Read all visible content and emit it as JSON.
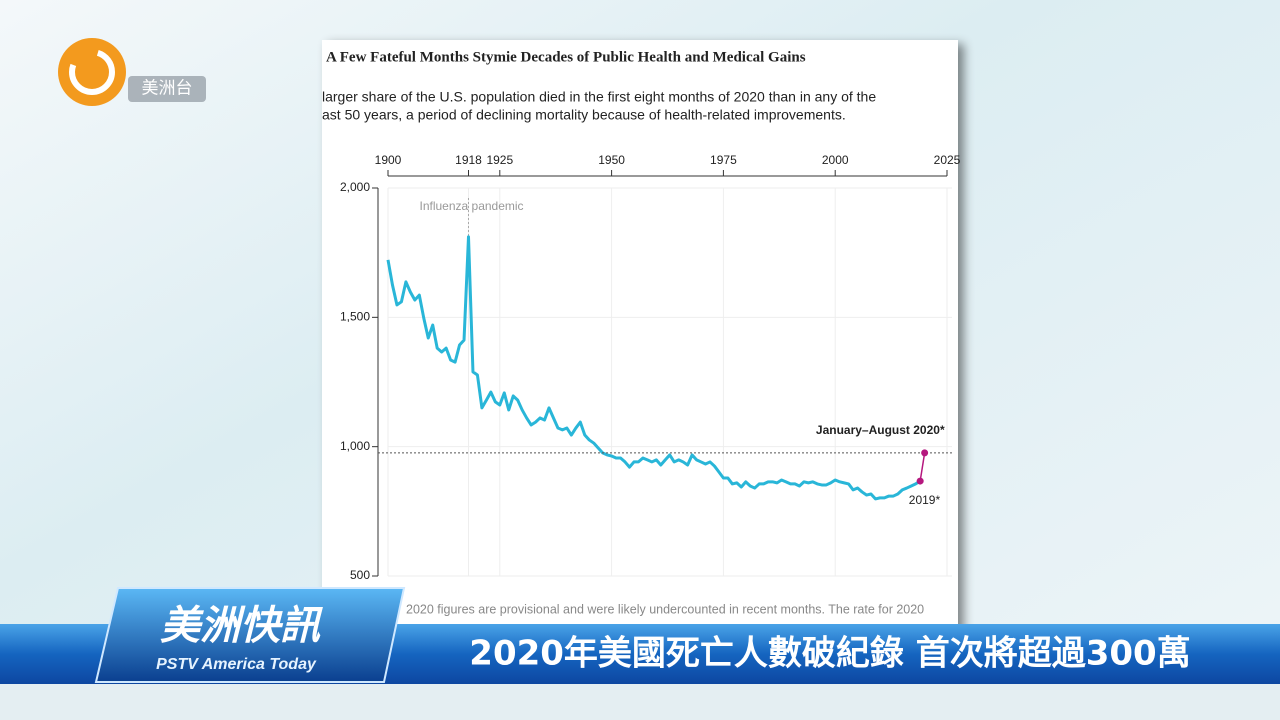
{
  "broadcast": {
    "logo": "美洲台",
    "program_zh": "美洲快訊",
    "program_en": "PSTV America Today",
    "headline": "2020年美國死亡人數破紀錄  首次將超過300萬"
  },
  "chart_data": {
    "type": "line",
    "title": "A Few Fateful Months Stymie Decades of Public Health and Medical Gains",
    "subtitle": [
      "larger share of the U.S. population died in the first eight months of 2020 than in any of the",
      "ast 50 years, a period of declining mortality because of health-related improvements."
    ],
    "footnote": "2020 figures are provisional and were likely undercounted in recent months. The rate for 2020",
    "xlim": [
      1900,
      2025
    ],
    "xticks": [
      1900,
      1918,
      1925,
      1950,
      1975,
      2000,
      2025
    ],
    "ylim": [
      500,
      2000
    ],
    "yticks": [
      {
        "value": 500,
        "label": "500"
      },
      {
        "value": 1000,
        "label": "1,000"
      },
      {
        "value": 1500,
        "label": "1,500"
      },
      {
        "value": 2000,
        "label": "2,000"
      }
    ],
    "grid": true,
    "color": "#29b6d8",
    "x": [
      1900,
      1901,
      1902,
      1903,
      1904,
      1905,
      1906,
      1907,
      1908,
      1909,
      1910,
      1911,
      1912,
      1913,
      1914,
      1915,
      1916,
      1917,
      1918,
      1919,
      1920,
      1921,
      1922,
      1923,
      1924,
      1925,
      1926,
      1927,
      1928,
      1929,
      1930,
      1931,
      1932,
      1933,
      1934,
      1935,
      1936,
      1937,
      1938,
      1939,
      1940,
      1941,
      1942,
      1943,
      1944,
      1945,
      1946,
      1947,
      1948,
      1949,
      1950,
      1951,
      1952,
      1953,
      1954,
      1955,
      1956,
      1957,
      1958,
      1959,
      1960,
      1961,
      1962,
      1963,
      1964,
      1965,
      1966,
      1967,
      1968,
      1969,
      1970,
      1971,
      1972,
      1973,
      1974,
      1975,
      1976,
      1977,
      1978,
      1979,
      1980,
      1981,
      1982,
      1983,
      1984,
      1985,
      1986,
      1987,
      1988,
      1989,
      1990,
      1991,
      1992,
      1993,
      1994,
      1995,
      1996,
      1997,
      1998,
      1999,
      2000,
      2001,
      2002,
      2003,
      2004,
      2005,
      2006,
      2007,
      2008,
      2009,
      2010,
      2011,
      2012,
      2013,
      2014,
      2015,
      2016,
      2017,
      2018,
      2019
    ],
    "values": [
      1722,
      1625,
      1548,
      1560,
      1637,
      1598,
      1567,
      1586,
      1497,
      1420,
      1470,
      1381,
      1366,
      1381,
      1335,
      1327,
      1393,
      1412,
      1811,
      1289,
      1277,
      1150,
      1180,
      1211,
      1173,
      1161,
      1208,
      1142,
      1196,
      1180,
      1142,
      1111,
      1084,
      1095,
      1111,
      1103,
      1150,
      1111,
      1072,
      1065,
      1072,
      1045,
      1072,
      1095,
      1045,
      1026,
      1014,
      995,
      976,
      968,
      964,
      956,
      956,
      941,
      921,
      941,
      941,
      956,
      949,
      941,
      949,
      929,
      949,
      968,
      941,
      949,
      941,
      929,
      968,
      949,
      941,
      933,
      941,
      925,
      902,
      879,
      879,
      856,
      860,
      844,
      864,
      848,
      840,
      856,
      856,
      864,
      864,
      860,
      871,
      864,
      856,
      856,
      848,
      864,
      860,
      864,
      856,
      852,
      852,
      860,
      871,
      864,
      860,
      856,
      833,
      840,
      825,
      813,
      817,
      798,
      802,
      802,
      809,
      809,
      817,
      833,
      840,
      848,
      856,
      867
    ],
    "highlight": {
      "x": [
        2019,
        2020
      ],
      "values": [
        867,
        976
      ],
      "color": "#b5177e",
      "labels": [
        "2019*",
        "January–August 2020*"
      ]
    },
    "annotations": [
      {
        "text": "Influenza pandemic",
        "x": 1918
      }
    ]
  }
}
